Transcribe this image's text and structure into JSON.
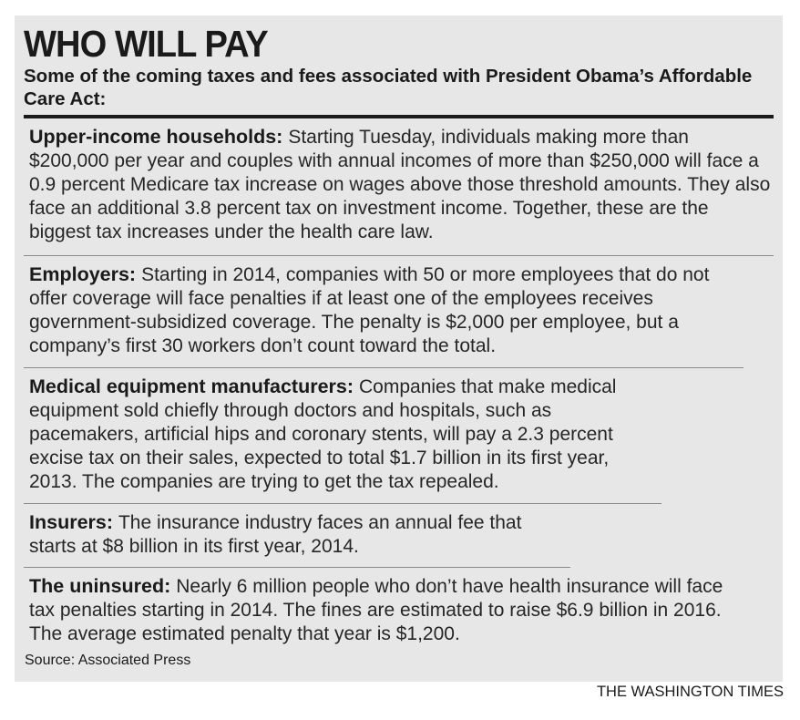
{
  "header": {
    "title": "WHO WILL PAY",
    "subtitle": "Some of the coming taxes and fees associated with President Obama’s Affordable Care Act:"
  },
  "entries": [
    {
      "lead": "Upper-income households:",
      "text": "Starting Tuesday, individuals making more than $200,000 per year and couples with annual incomes of more than $250,000 will face a 0.9 percent Medicare tax increase on wages above those threshold amounts. They also face an additional 3.8 percent tax on investment income. Together, these are the biggest tax increases under the health care law."
    },
    {
      "lead": "Employers:",
      "text": "Starting in 2014, companies with 50 or more employees that do not offer coverage will face penalties if at least one of the employees receives government-subsidized coverage. The penalty is $2,000 per employee, but a company’s first 30 workers don’t count toward the total."
    },
    {
      "lead": "Medical equipment manufacturers:",
      "text": "Companies that make medical equipment sold chiefly through doctors and hospitals, such as pacemakers, artificial hips and coronary stents, will pay a 2.3 percent excise tax on their sales, expected to total $1.7 billion in its first year, 2013. The companies are trying to get the tax repealed."
    },
    {
      "lead": "Insurers:",
      "text": "The insurance industry faces an annual fee that starts at $8 billion in its first year, 2014."
    },
    {
      "lead": "The uninsured:",
      "text": "Nearly 6 million people who don’t have health insurance will face tax penalties starting in 2014. The fines are estimated to raise $6.9 billion in 2016. The average estimated penalty that year is $1,200."
    }
  ],
  "footer": {
    "source": "Source: Associated Press",
    "credit": "THE WASHINGTON TIMES"
  },
  "colors": {
    "panel_background": "#e7e7e7",
    "text": "#1a1a1a",
    "rule": "#1a1a1a",
    "divider": "#8a8a8a"
  }
}
